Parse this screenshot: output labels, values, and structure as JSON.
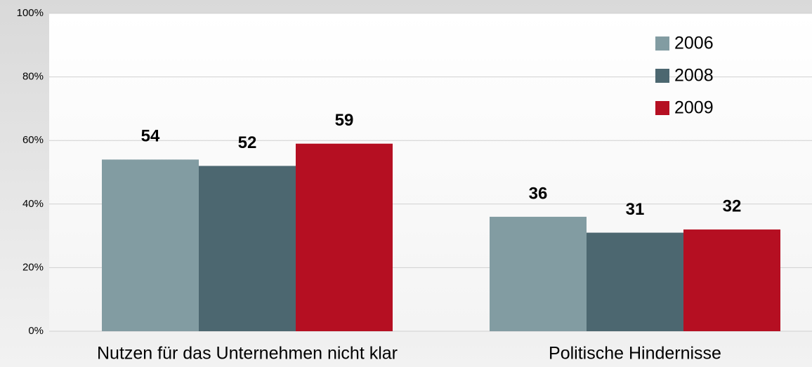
{
  "chart_data": {
    "type": "bar",
    "categories": [
      "Nutzen für das Unternehmen nicht klar",
      "Politische Hindernisse"
    ],
    "series": [
      {
        "name": "2006",
        "color": "#829ca2",
        "values": [
          54,
          36
        ]
      },
      {
        "name": "2008",
        "color": "#4c6770",
        "values": [
          52,
          31
        ]
      },
      {
        "name": "2009",
        "color": "#b50f22",
        "values": [
          59,
          32
        ]
      }
    ],
    "ylim": [
      0,
      100
    ],
    "yticks": [
      {
        "value": 0,
        "label": "0%"
      },
      {
        "value": 20,
        "label": "20%"
      },
      {
        "value": 40,
        "label": "40%"
      },
      {
        "value": 60,
        "label": "60%"
      },
      {
        "value": 80,
        "label": "80%"
      },
      {
        "value": 100,
        "label": "100%"
      }
    ],
    "grid": true,
    "legend": "top-right"
  }
}
